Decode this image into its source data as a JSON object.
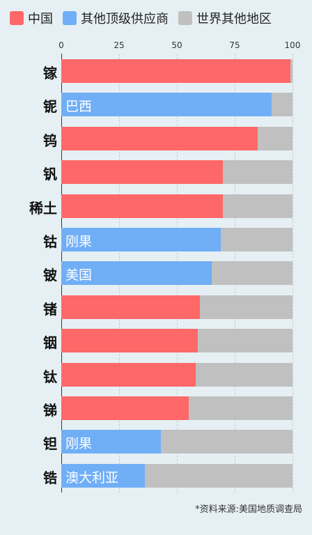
{
  "chart_data": {
    "type": "bar",
    "orientation": "horizontal",
    "stacked": true,
    "legend": {
      "position": "top-left",
      "entries": [
        {
          "name": "中国",
          "color": "#ff6868"
        },
        {
          "name": "其他顶级供应商",
          "color": "#70aef5"
        },
        {
          "name": "世界其他地区",
          "color": "#c0c0c0"
        }
      ]
    },
    "xlim": [
      0,
      100
    ],
    "xticks": [
      "0",
      "25",
      "50",
      "75",
      "100"
    ],
    "grid": true,
    "categories": [
      "镓",
      "铌",
      "钨",
      "钒",
      "稀土",
      "钴",
      "铍",
      "锗",
      "铟",
      "钛",
      "锑",
      "钽",
      "锆"
    ],
    "top_supplier_values": [
      99,
      91,
      85,
      70,
      70,
      69,
      65,
      60,
      59,
      58,
      55,
      43,
      36
    ],
    "top_supplier_type": [
      "china",
      "other",
      "china",
      "china",
      "china",
      "other",
      "other",
      "china",
      "china",
      "china",
      "china",
      "other",
      "other"
    ],
    "top_supplier_labels": [
      "",
      "巴西",
      "",
      "",
      "",
      "刚果",
      "美国",
      "",
      "",
      "",
      "",
      "刚果",
      "澳大利亚"
    ],
    "rest_of_world_values": [
      1,
      9,
      15,
      30,
      30,
      31,
      35,
      40,
      41,
      42,
      45,
      57,
      64
    ]
  },
  "footnote": "*资料来源:美国地质调查局"
}
